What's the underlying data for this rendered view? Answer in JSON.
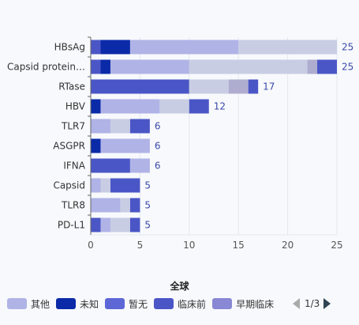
{
  "chart_data": {
    "type": "bar",
    "orientation": "horizontal",
    "stacked": true,
    "categories": [
      "HBsAg",
      "Capsid protein…",
      "RTase",
      "HBV",
      "TLR7",
      "ASGPR",
      "IFNA",
      "Capsid",
      "TLR8",
      "PD-L1"
    ],
    "xlim": [
      0,
      25
    ],
    "xticks": [
      "0",
      "5",
      "10",
      "15",
      "20",
      "25"
    ],
    "grid": true,
    "series": [
      {
        "name": "",
        "color": "#4b56c6",
        "values": [
          1,
          1,
          10,
          0,
          0,
          0,
          4,
          0,
          0,
          1
        ]
      },
      {
        "name": "",
        "color": "#0a2aa8",
        "values": [
          3,
          1,
          0,
          1,
          0,
          1,
          0,
          0,
          0,
          0
        ]
      },
      {
        "name": "",
        "color": "#b0b3e6",
        "values": [
          11,
          8,
          0,
          6,
          2,
          5,
          2,
          1,
          3,
          1
        ]
      },
      {
        "name": "",
        "color": "#c9cde4",
        "values": [
          10,
          12,
          4,
          3,
          2,
          0,
          0,
          1,
          1,
          2
        ]
      },
      {
        "name": "",
        "color": "#aeadd0",
        "values": [
          0,
          1,
          2,
          0,
          0,
          0,
          0,
          0,
          0,
          0
        ]
      },
      {
        "name": "",
        "color": "#4b56c6",
        "values": [
          0,
          2,
          1,
          2,
          2,
          0,
          0,
          3,
          1,
          1
        ]
      }
    ],
    "totals": [
      "25",
      "25",
      "17",
      "12",
      "6",
      "6",
      "6",
      "5",
      "5",
      "5"
    ]
  },
  "legend": {
    "title": "全球",
    "items": [
      {
        "label": "其他",
        "color": "#b0b3e6"
      },
      {
        "label": "未知",
        "color": "#0a2aa8"
      },
      {
        "label": "暂无",
        "color": "#5e67d6"
      },
      {
        "label": "临床前",
        "color": "#4b56c6"
      },
      {
        "label": "早期临床",
        "color": "#8888d4"
      }
    ],
    "page": "1/3"
  },
  "colors": {
    "axis": "#666666",
    "grid": "#e3e6ee",
    "total_label": "#3b4aa8"
  }
}
